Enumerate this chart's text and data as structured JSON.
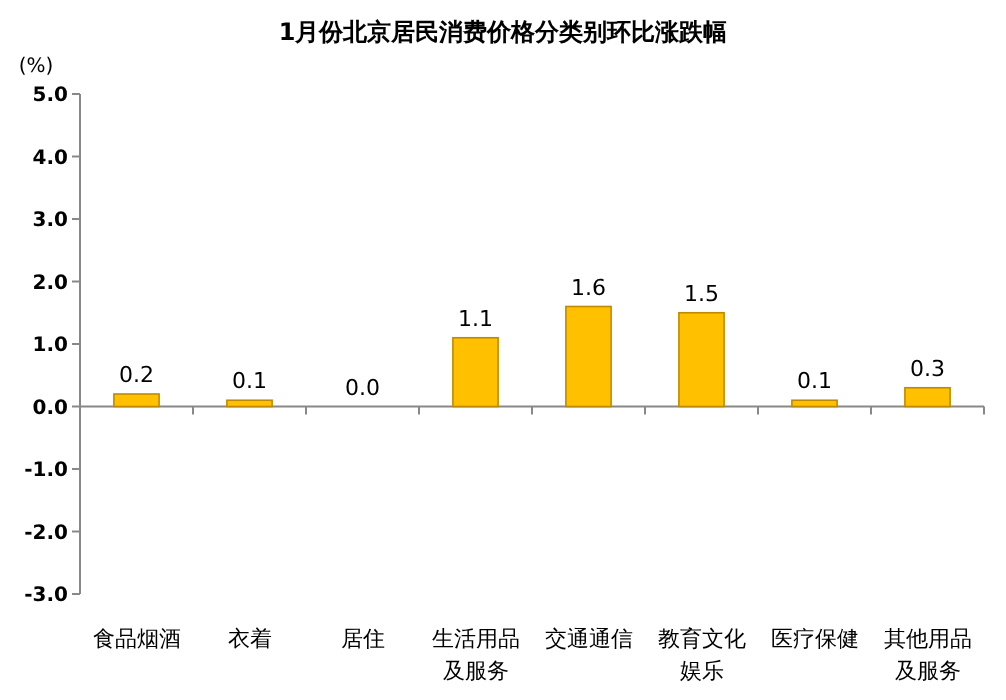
{
  "chart_data": {
    "type": "bar",
    "title": "1月份北京居民消费价格分类别环比涨跌幅",
    "ylabel": "(%)",
    "categories": [
      "食品烟酒",
      "衣着",
      "居住",
      "生活用品及服务",
      "交通通信",
      "教育文化娱乐",
      "医疗保健",
      "其他用品及服务"
    ],
    "values": [
      0.2,
      0.1,
      0.0,
      1.1,
      1.6,
      1.5,
      0.1,
      0.3
    ],
    "color": "#ffc000",
    "ylim": [
      -3,
      5
    ],
    "yticks": [
      {
        "value": -3,
        "label": "-3.0"
      },
      {
        "value": -2,
        "label": "-2.0"
      },
      {
        "value": -1,
        "label": "-1.0"
      },
      {
        "value": 0,
        "label": "0.0"
      },
      {
        "value": 1,
        "label": "1.0"
      },
      {
        "value": 2,
        "label": "2.0"
      },
      {
        "value": 3,
        "label": "3.0"
      },
      {
        "value": 4,
        "label": "4.0"
      },
      {
        "value": 5,
        "label": "5.0"
      }
    ],
    "value_labels": [
      "0.2",
      "0.1",
      "0.0",
      "1.1",
      "1.6",
      "1.5",
      "0.1",
      "0.3"
    ]
  }
}
